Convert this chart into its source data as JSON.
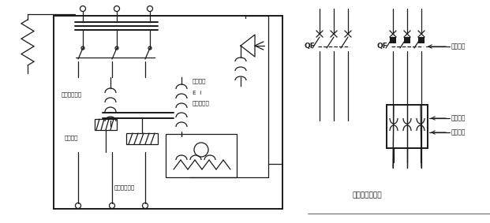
{
  "bg_color": "#ffffff",
  "line_color": "#1a1a1a",
  "text_color": "#1a1a1a",
  "fig_width": 6.21,
  "fig_height": 2.83,
  "dpi": 100,
  "labels": {
    "overcurrent": "过电流脱扣器",
    "thermal": "热脱扣器",
    "remote_button": "远控按鈕",
    "shunt": "分劥脱扣器",
    "undervoltage": "失电压脱扣器",
    "circuit_symbol": "断路器图形符号",
    "loss_voltage_prot": "失压保护",
    "overcurrent_prot": "过流保护",
    "overload_prot": "过载保护",
    "QF": "QF",
    "E_I": "E  I"
  }
}
